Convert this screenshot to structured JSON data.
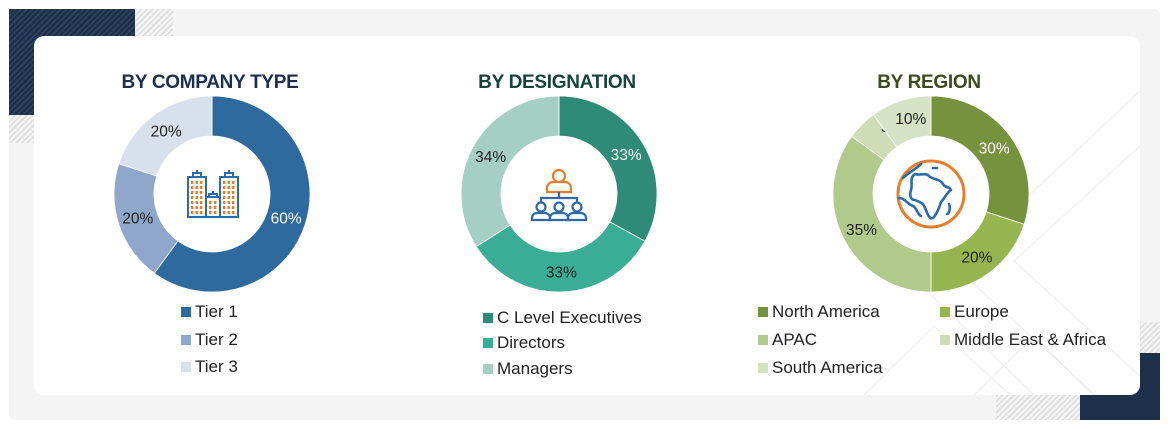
{
  "panels": [
    {
      "id": "company-type",
      "title": "BY COMPANY TYPE",
      "title_color": "#1b2f4f",
      "icon": "buildings-icon",
      "segments": [
        {
          "label": "Tier 1",
          "value": 60,
          "text": "60%",
          "color": "#2e6a9e",
          "text_color": "#ffffff"
        },
        {
          "label": "Tier 2",
          "value": 20,
          "text": "20%",
          "color": "#8ea7cb",
          "text_color": "#222222"
        },
        {
          "label": "Tier 3",
          "value": 20,
          "text": "20%",
          "color": "#d8e0ec",
          "text_color": "#222222"
        }
      ]
    },
    {
      "id": "designation",
      "title": "BY DESIGNATION",
      "title_color": "#17443a",
      "icon": "org-hierarchy-icon",
      "segments": [
        {
          "label": "C Level Executives",
          "value": 33,
          "text": "33%",
          "color": "#2e8b78",
          "text_color": "#ffffff"
        },
        {
          "label": "Directors",
          "value": 33,
          "text": "33%",
          "color": "#3aae95",
          "text_color": "#222222"
        },
        {
          "label": "Managers",
          "value": 34,
          "text": "34%",
          "color": "#a6cfc3",
          "text_color": "#222222"
        }
      ]
    },
    {
      "id": "region",
      "title": "BY REGION",
      "title_color": "#3b4d1e",
      "icon": "globe-icon",
      "segments": [
        {
          "label": "North America",
          "value": 30,
          "text": "30%",
          "color": "#76923c",
          "text_color": "#ffffff"
        },
        {
          "label": "Europe",
          "value": 20,
          "text": "20%",
          "color": "#96b54f",
          "text_color": "#222222"
        },
        {
          "label": "APAC",
          "value": 35,
          "text": "35%",
          "color": "#b1c98a",
          "text_color": "#222222"
        },
        {
          "label": "Middle East & Africa",
          "value": 5,
          "text": "5%",
          "color": "#cfdcb8",
          "text_color": "#222222"
        },
        {
          "label": "South America",
          "value": 10,
          "text": "10%",
          "color": "#d6e2c4",
          "text_color": "#222222"
        }
      ]
    }
  ],
  "chart_data": [
    {
      "type": "pie",
      "variant": "donut",
      "title": "BY COMPANY TYPE",
      "categories": [
        "Tier 1",
        "Tier 2",
        "Tier 3"
      ],
      "values": [
        60,
        20,
        20
      ],
      "unit": "%",
      "legend_position": "bottom"
    },
    {
      "type": "pie",
      "variant": "donut",
      "title": "BY DESIGNATION",
      "categories": [
        "C Level Executives",
        "Directors",
        "Managers"
      ],
      "values": [
        33,
        33,
        34
      ],
      "unit": "%",
      "legend_position": "bottom"
    },
    {
      "type": "pie",
      "variant": "donut",
      "title": "BY REGION",
      "categories": [
        "North America",
        "Europe",
        "APAC",
        "Middle East & Africa",
        "South America"
      ],
      "values": [
        30,
        20,
        35,
        5,
        10
      ],
      "unit": "%",
      "legend_position": "bottom"
    }
  ]
}
